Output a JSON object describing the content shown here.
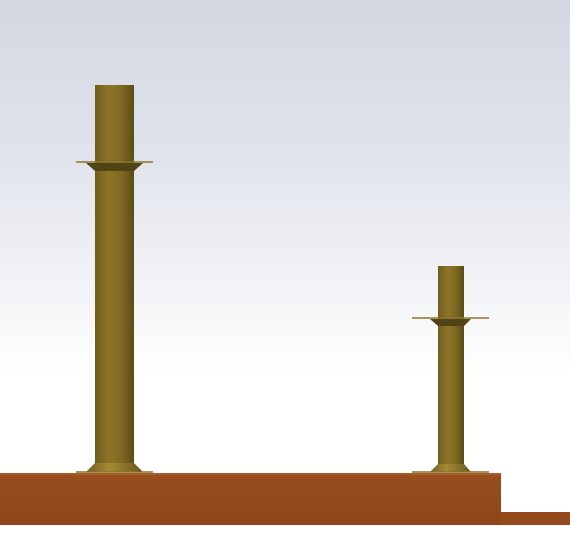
{
  "scene": {
    "colors": {
      "background_top": "#d3d7e2",
      "background_bottom": "#ffffff",
      "base_plate": "#944a1c",
      "post_light": "#8a7428",
      "post_dark": "#5e4d18",
      "collar": "#4f4214"
    },
    "objects": [
      "tall-post",
      "short-post",
      "base-plate"
    ]
  }
}
